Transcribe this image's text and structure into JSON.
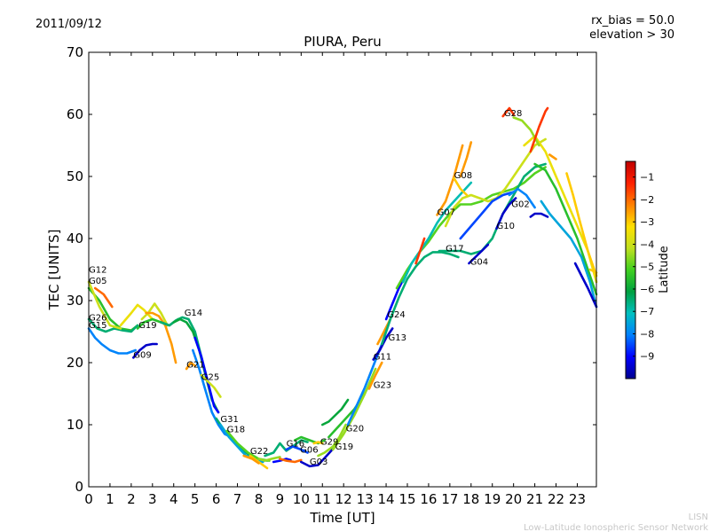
{
  "header": {
    "date": "2011/09/12",
    "rx_bias": "rx_bias = 50.0",
    "elevation": "elevation > 30"
  },
  "footer": {
    "line1": "LISN",
    "line2": "Low-Latitude Ionospheric Sensor Network"
  },
  "chart_data": {
    "type": "line",
    "title": "PIURA, Peru",
    "xlabel": "Time [UT]",
    "ylabel": "TEC [UNITS]",
    "xlim": [
      0,
      23.9
    ],
    "ylim": [
      0,
      70
    ],
    "xticks": [
      0,
      1,
      2,
      3,
      4,
      5,
      6,
      7,
      8,
      9,
      10,
      11,
      12,
      13,
      14,
      15,
      16,
      17,
      18,
      19,
      20,
      21,
      22,
      23
    ],
    "yticks": [
      0,
      10,
      20,
      30,
      40,
      50,
      60,
      70
    ],
    "grid": false,
    "colorbar": {
      "label": "Latitude",
      "min": -10,
      "max": -0.3,
      "ticks": [
        -1,
        -2,
        -3,
        -4,
        -5,
        -6,
        -7,
        -8,
        -9
      ],
      "colors": [
        "#00008f",
        "#0000ff",
        "#0080ff",
        "#00c0c0",
        "#00a040",
        "#40d020",
        "#c0e020",
        "#ffe000",
        "#ff8000",
        "#ff2000",
        "#c00000"
      ]
    },
    "satellite_labels": [
      {
        "text": "G12",
        "x": 0.0,
        "y": 34.5
      },
      {
        "text": "G05",
        "x": 0.0,
        "y": 32.7
      },
      {
        "text": "G26",
        "x": 0.0,
        "y": 26.8
      },
      {
        "text": "G15",
        "x": 0.0,
        "y": 25.6
      },
      {
        "text": "G19",
        "x": 2.35,
        "y": 25.6
      },
      {
        "text": "G09",
        "x": 2.1,
        "y": 20.8
      },
      {
        "text": "G14",
        "x": 4.5,
        "y": 27.6
      },
      {
        "text": "G21",
        "x": 4.6,
        "y": 19.2
      },
      {
        "text": "G25",
        "x": 5.3,
        "y": 17.2
      },
      {
        "text": "G31",
        "x": 6.2,
        "y": 10.4
      },
      {
        "text": "G18",
        "x": 6.5,
        "y": 8.8
      },
      {
        "text": "G22",
        "x": 7.6,
        "y": 5.3
      },
      {
        "text": "G16",
        "x": 9.3,
        "y": 6.5
      },
      {
        "text": "G06",
        "x": 9.95,
        "y": 5.5
      },
      {
        "text": "G29",
        "x": 10.9,
        "y": 6.8
      },
      {
        "text": "G03",
        "x": 10.4,
        "y": 3.6
      },
      {
        "text": "G19",
        "x": 11.6,
        "y": 6.0
      },
      {
        "text": "G20",
        "x": 12.1,
        "y": 8.9
      },
      {
        "text": "G11",
        "x": 13.4,
        "y": 20.5
      },
      {
        "text": "G23",
        "x": 13.4,
        "y": 15.9
      },
      {
        "text": "G13",
        "x": 14.1,
        "y": 23.6
      },
      {
        "text": "G24",
        "x": 14.05,
        "y": 27.3
      },
      {
        "text": "G07",
        "x": 16.4,
        "y": 43.8
      },
      {
        "text": "G17",
        "x": 16.8,
        "y": 37.9
      },
      {
        "text": "G08",
        "x": 17.2,
        "y": 49.7
      },
      {
        "text": "G04",
        "x": 17.95,
        "y": 35.8
      },
      {
        "text": "G10",
        "x": 19.2,
        "y": 41.6
      },
      {
        "text": "G02",
        "x": 19.9,
        "y": 45.1
      },
      {
        "text": "G28",
        "x": 19.55,
        "y": 59.7
      }
    ],
    "series": [
      {
        "lat": -5.5,
        "x": [
          0,
          0.5,
          1,
          1.5,
          2,
          2.3
        ],
        "y": [
          32,
          30,
          27,
          25.5,
          25.2,
          26
        ]
      },
      {
        "lat": -6.5,
        "x": [
          0,
          0.4,
          0.8,
          1.2,
          1.6,
          2.0,
          2.3
        ],
        "y": [
          27,
          25.5,
          25,
          25.5,
          25.2,
          25,
          26
        ]
      },
      {
        "lat": -8.0,
        "x": [
          0,
          0.3,
          0.6,
          1,
          1.4,
          1.8,
          2.2
        ],
        "y": [
          25.5,
          24,
          23,
          22,
          21.5,
          21.5,
          22
        ]
      },
      {
        "lat": -2.0,
        "x": [
          0.3,
          0.7,
          1.1
        ],
        "y": [
          32,
          31,
          29
        ]
      },
      {
        "lat": -4.0,
        "x": [
          0,
          0.5,
          1,
          1.5
        ],
        "y": [
          33,
          29,
          26,
          25.5
        ]
      },
      {
        "lat": -9.5,
        "x": [
          2.1,
          2.4,
          2.7,
          3.0,
          3.2
        ],
        "y": [
          20.8,
          22,
          22.8,
          23,
          23
        ]
      },
      {
        "lat": -3.5,
        "x": [
          1.5,
          2,
          2.3,
          2.6,
          3.0
        ],
        "y": [
          26,
          28,
          29.3,
          28.5,
          27
        ]
      },
      {
        "lat": -4.0,
        "x": [
          2.5,
          2.8,
          3.1,
          3.4,
          3.7
        ],
        "y": [
          27,
          28,
          29.5,
          28,
          26
        ]
      },
      {
        "lat": -2.5,
        "x": [
          2.7,
          3.0,
          3.3,
          3.6,
          3.9,
          4.1
        ],
        "y": [
          28,
          28,
          27.5,
          26,
          23,
          20
        ]
      },
      {
        "lat": -5.5,
        "x": [
          2.3,
          2.6,
          3,
          3.4,
          3.8,
          4.2
        ],
        "y": [
          25.5,
          26.5,
          27,
          26.5,
          26,
          27
        ]
      },
      {
        "lat": -6.5,
        "x": [
          3.4,
          3.8,
          4.1,
          4.4,
          4.7,
          5.0,
          5.3,
          5.6
        ],
        "y": [
          26.5,
          26,
          26.8,
          27.3,
          27,
          25,
          21,
          17
        ]
      },
      {
        "lat": -6.0,
        "x": [
          4.0,
          4.3,
          4.6,
          4.9,
          5.2,
          5.5,
          5.8,
          6.1
        ],
        "y": [
          26.5,
          27,
          26.5,
          25,
          22,
          18,
          14,
          12
        ]
      },
      {
        "lat": -9.0,
        "x": [
          5.0,
          5.3,
          5.6,
          5.9,
          6.1
        ],
        "y": [
          24,
          21,
          17,
          13,
          12
        ]
      },
      {
        "lat": -8.0,
        "x": [
          4.9,
          5.2,
          5.5,
          5.8,
          6.1,
          6.4,
          6.7
        ],
        "y": [
          22,
          19,
          15.5,
          12,
          10,
          8.5,
          8
        ]
      },
      {
        "lat": -2.5,
        "x": [
          4.6,
          4.8,
          5.0
        ],
        "y": [
          19,
          20,
          19.5
        ]
      },
      {
        "lat": -4.0,
        "x": [
          5.3,
          5.6,
          5.9,
          6.2
        ],
        "y": [
          18,
          17,
          16,
          14.5
        ]
      },
      {
        "lat": -6.5,
        "x": [
          6.0,
          6.4,
          6.8,
          7.2,
          7.6,
          8.0,
          8.4
        ],
        "y": [
          11,
          9,
          7.5,
          6,
          5,
          4.5,
          4.2
        ]
      },
      {
        "lat": -7.5,
        "x": [
          6.2,
          6.6,
          7.0,
          7.4,
          7.8,
          8.2
        ],
        "y": [
          10,
          8,
          6.5,
          5,
          4.5,
          4
        ]
      },
      {
        "lat": -5.0,
        "x": [
          6.5,
          7,
          7.5,
          8,
          8.5
        ],
        "y": [
          9,
          7,
          5.5,
          4.5,
          4.2
        ]
      },
      {
        "lat": -3.0,
        "x": [
          7.6,
          8.0,
          8.4
        ],
        "y": [
          5,
          4,
          3
        ]
      },
      {
        "lat": -2.5,
        "x": [
          7.3,
          7.7,
          8.0
        ],
        "y": [
          5,
          4.5,
          3.8
        ]
      },
      {
        "lat": -4.5,
        "x": [
          8.0,
          8.3,
          8.6,
          9.0
        ],
        "y": [
          4.5,
          4.2,
          4.5,
          4.8
        ]
      },
      {
        "lat": -6.5,
        "x": [
          8.3,
          8.7,
          9.0,
          9.3,
          9.6,
          10.0,
          10.3
        ],
        "y": [
          5,
          5.5,
          7,
          5.8,
          6.5,
          7.5,
          7.2
        ]
      },
      {
        "lat": -9.0,
        "x": [
          8.7,
          9.0,
          9.3,
          9.5
        ],
        "y": [
          4,
          4.2,
          4.5,
          4.3
        ]
      },
      {
        "lat": -2.0,
        "x": [
          9.0,
          9.3,
          9.7,
          10.0
        ],
        "y": [
          4.5,
          4.2,
          4,
          4.3
        ]
      },
      {
        "lat": -8.5,
        "x": [
          9.3,
          9.6,
          10.0,
          10.3
        ],
        "y": [
          6,
          6.5,
          6,
          5.5
        ]
      },
      {
        "lat": -5.5,
        "x": [
          9.7,
          10.0,
          10.4,
          10.8,
          11.1
        ],
        "y": [
          7.5,
          8,
          7.5,
          7,
          7.5
        ]
      },
      {
        "lat": -9.5,
        "x": [
          10.0,
          10.4,
          10.8,
          11.2,
          11.6
        ],
        "y": [
          4,
          3.3,
          3.5,
          5,
          6.5
        ]
      },
      {
        "lat": -3.0,
        "x": [
          10.6,
          10.8,
          11.0
        ],
        "y": [
          7,
          7.2,
          7
        ]
      },
      {
        "lat": -4.5,
        "x": [
          10.8,
          11.1,
          11.5,
          11.8,
          12.1
        ],
        "y": [
          5,
          5.5,
          6.5,
          8,
          10
        ]
      },
      {
        "lat": -6.0,
        "x": [
          11.0,
          11.3,
          11.6,
          11.9,
          12.2
        ],
        "y": [
          10,
          10.5,
          11.5,
          12.5,
          14
        ]
      },
      {
        "lat": -5.5,
        "x": [
          11.3,
          11.7,
          12.1,
          12.5,
          12.9,
          13.3
        ],
        "y": [
          8,
          9.5,
          11,
          12.5,
          14.5,
          17
        ]
      },
      {
        "lat": -4.5,
        "x": [
          11.5,
          12,
          12.5,
          13,
          13.5
        ],
        "y": [
          6,
          8.5,
          11.5,
          15,
          19
        ]
      },
      {
        "lat": -8.0,
        "x": [
          12.2,
          12.6,
          13,
          13.4,
          13.8,
          14.2
        ],
        "y": [
          10,
          13,
          16,
          19.5,
          23,
          27
        ]
      },
      {
        "lat": -2.5,
        "x": [
          13.2,
          13.5,
          13.8
        ],
        "y": [
          15.8,
          18,
          20
        ]
      },
      {
        "lat": -9.5,
        "x": [
          13.4,
          13.7,
          14.0,
          14.3
        ],
        "y": [
          20.5,
          22,
          24,
          25.5
        ]
      },
      {
        "lat": -2.5,
        "x": [
          13.6,
          13.9,
          14.2
        ],
        "y": [
          23,
          25,
          27
        ]
      },
      {
        "lat": -9.0,
        "x": [
          14.0,
          14.3,
          14.6,
          14.9
        ],
        "y": [
          27,
          29.5,
          32,
          34
        ]
      },
      {
        "lat": -6.5,
        "x": [
          13.8,
          14.2,
          14.6,
          15.0,
          15.4,
          15.8,
          16.2,
          16.6,
          17.0,
          17.4
        ],
        "y": [
          23,
          27,
          30.5,
          33.5,
          35.5,
          37,
          37.8,
          37.8,
          37.5,
          37
        ]
      },
      {
        "lat": -5.0,
        "x": [
          14.5,
          15,
          15.5,
          16,
          16.5,
          17,
          17.5,
          18,
          18.5,
          19,
          19.5,
          20,
          20.5,
          21,
          21.5
        ],
        "y": [
          32,
          35,
          37.5,
          39.5,
          42,
          44,
          45.5,
          45.5,
          46,
          47,
          47.5,
          48,
          49,
          50.5,
          51.5
        ]
      },
      {
        "lat": -7.0,
        "x": [
          14.8,
          15.2,
          15.6,
          16,
          16.4,
          16.8,
          17.2,
          17.6,
          18
        ],
        "y": [
          33,
          36,
          38,
          40,
          42.5,
          44.5,
          46,
          47.5,
          49
        ]
      },
      {
        "lat": -6.5,
        "x": [
          16.5,
          17,
          17.5,
          18,
          18.5,
          19,
          19.5,
          20,
          20.5,
          21,
          21.5
        ],
        "y": [
          38,
          38,
          38,
          37.5,
          38,
          40,
          44,
          47,
          50,
          51.5,
          52
        ]
      },
      {
        "lat": -4.0,
        "x": [
          16.8,
          17.2,
          17.6,
          18,
          18.4,
          18.8,
          19.2,
          19.6,
          20,
          20.5,
          21,
          21.5
        ],
        "y": [
          42,
          45,
          46.5,
          47,
          46.5,
          46,
          46.5,
          48,
          50,
          52.5,
          55,
          56
        ]
      },
      {
        "lat": -3.5,
        "x": [
          20.5,
          21,
          21.5,
          22,
          22.5,
          23,
          23.5,
          23.9
        ],
        "y": [
          55,
          56.5,
          54,
          50,
          46,
          42,
          38,
          33
        ]
      },
      {
        "lat": -5.5,
        "x": [
          21,
          21.5,
          22,
          22.5,
          23,
          23.5,
          23.9
        ],
        "y": [
          52,
          51,
          48,
          44,
          40,
          35,
          31
        ]
      },
      {
        "lat": -7.5,
        "x": [
          21.3,
          21.7,
          22.2,
          22.7,
          23.2,
          23.6,
          23.9
        ],
        "y": [
          46,
          44,
          42,
          40,
          37,
          33,
          29
        ]
      },
      {
        "lat": -2.5,
        "x": [
          16.4,
          16.8,
          17.2,
          17.6
        ],
        "y": [
          43.8,
          46,
          50,
          55
        ]
      },
      {
        "lat": -3.0,
        "x": [
          17.2,
          17.5,
          17.8
        ],
        "y": [
          49.7,
          48,
          47
        ]
      },
      {
        "lat": -2.5,
        "x": [
          17.5,
          17.8,
          18.0
        ],
        "y": [
          50,
          53,
          55.5
        ]
      },
      {
        "lat": -1.5,
        "x": [
          15.4,
          15.6,
          15.8
        ],
        "y": [
          36,
          38,
          40
        ]
      },
      {
        "lat": -9.5,
        "x": [
          17.9,
          18.2,
          18.5,
          18.8
        ],
        "y": [
          36,
          37,
          38,
          39
        ]
      },
      {
        "lat": -8.5,
        "x": [
          17.5,
          18,
          18.5,
          19,
          19.5,
          20
        ],
        "y": [
          40,
          42,
          44,
          46,
          47,
          47.5
        ]
      },
      {
        "lat": -9.5,
        "x": [
          19.2,
          19.5,
          19.8,
          20.1
        ],
        "y": [
          41.6,
          44,
          45.5,
          46.5
        ]
      },
      {
        "lat": -8.0,
        "x": [
          19.8,
          20.2,
          20.6,
          21.0
        ],
        "y": [
          47,
          48,
          47,
          45
        ]
      },
      {
        "lat": -9.5,
        "x": [
          20.8,
          21.0,
          21.3,
          21.6
        ],
        "y": [
          43.5,
          44,
          44,
          43.5
        ]
      },
      {
        "lat": -1.5,
        "x": [
          19.5,
          19.8,
          20.0
        ],
        "y": [
          59.7,
          61,
          60
        ]
      },
      {
        "lat": -4.5,
        "x": [
          20.0,
          20.4,
          20.8,
          21.2
        ],
        "y": [
          59.5,
          59,
          57.5,
          55
        ]
      },
      {
        "lat": -1.5,
        "x": [
          20.8,
          21.2,
          21.5,
          21.6
        ],
        "y": [
          54,
          58,
          60.5,
          61
        ]
      },
      {
        "lat": -2.5,
        "x": [
          21.7,
          22.0
        ],
        "y": [
          53.5,
          52.8
        ]
      },
      {
        "lat": -3.0,
        "x": [
          22.5,
          22.8,
          23.1,
          23.5,
          23.9
        ],
        "y": [
          50.5,
          47,
          43,
          38,
          34
        ]
      },
      {
        "lat": -9.5,
        "x": [
          22.9,
          23.2,
          23.5,
          23.9
        ],
        "y": [
          36,
          34,
          32,
          29
        ]
      },
      {
        "lat": -3.0,
        "x": [
          23.6,
          23.9
        ],
        "y": [
          35,
          34.5
        ]
      }
    ]
  }
}
